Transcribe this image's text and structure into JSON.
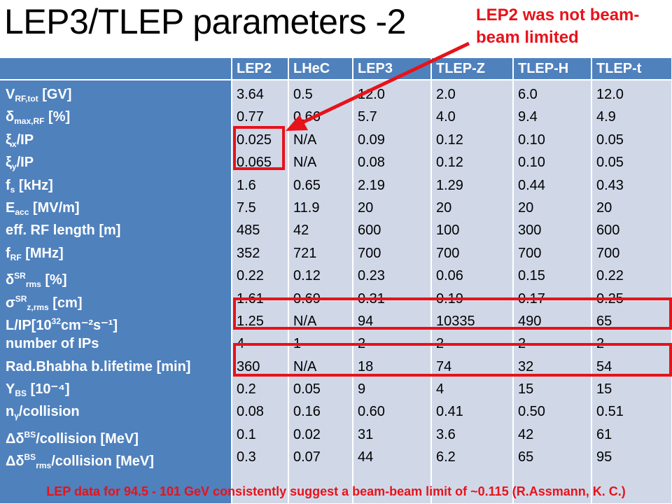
{
  "title": "LEP3/TLEP parameters -2",
  "callout": {
    "line1": "LEP2 was not beam-",
    "line2": "beam limited"
  },
  "columns": [
    "LEP2",
    "LHeC",
    "LEP3",
    "TLEP-Z",
    "TLEP-H",
    "TLEP-t"
  ],
  "row_labels": [
    {
      "base": "V",
      "sub": "RF,tot",
      "sup": "",
      "tail": " [GV]"
    },
    {
      "base": "δ",
      "sub": "max,RF",
      "sup": "",
      "tail": " [%]"
    },
    {
      "base": "ξ",
      "sub": "x",
      "sup": "",
      "tail": "/IP"
    },
    {
      "base": "ξ",
      "sub": "y",
      "sup": "",
      "tail": "/IP"
    },
    {
      "base": "f",
      "sub": "s",
      "sup": "",
      "tail": " [kHz]"
    },
    {
      "base": "E",
      "sub": "acc",
      "sup": "",
      "tail": " [MV/m]"
    },
    {
      "base": "eff. RF length [m]",
      "sub": "",
      "sup": "",
      "tail": ""
    },
    {
      "base": "f",
      "sub": "RF",
      "sup": "",
      "tail": " [MHz]"
    },
    {
      "base": "δ",
      "sub": "rms",
      "sup": "SR",
      "tail": " [%]"
    },
    {
      "base": "σ",
      "sub": "z,rms",
      "sup": "SR",
      "tail": " [cm]"
    },
    {
      "base": "L/IP[10",
      "sub": "",
      "sup": "32",
      "tail": "cm⁻²s⁻¹]"
    },
    {
      "base": "number of IPs",
      "sub": "",
      "sup": "",
      "tail": ""
    },
    {
      "base": "Rad.Bhabha b.lifetime [min]",
      "sub": "",
      "sup": "",
      "tail": ""
    },
    {
      "base": "Υ",
      "sub": "BS",
      "sup": "",
      "tail": " [10⁻⁴]"
    },
    {
      "base": "n",
      "sub": "γ",
      "sup": "",
      "tail": "/collision"
    },
    {
      "base": "Δδ",
      "sub": "",
      "sup": "BS",
      "tail": "/collision [MeV]"
    },
    {
      "base": "Δδ",
      "sub": "rms",
      "sup": "BS",
      "tail": "/collision [MeV]"
    }
  ],
  "values": [
    [
      "3.64",
      "0.77",
      "0.025",
      "0.065",
      "1.6",
      "7.5",
      "485",
      "352",
      "0.22",
      "1.61",
      "1.25",
      "4",
      "360",
      "0.2",
      "0.08",
      "0.1",
      "0.3"
    ],
    [
      "0.5",
      "0.66",
      "N/A",
      "N/A",
      "0.65",
      "11.9",
      "42",
      "721",
      "0.12",
      "0.69",
      "N/A",
      "1",
      "N/A",
      "0.05",
      "0.16",
      "0.02",
      "0.07"
    ],
    [
      "12.0",
      "5.7",
      "0.09",
      "0.08",
      "2.19",
      "20",
      "600",
      "700",
      "0.23",
      "0.31",
      "94",
      "2",
      "18",
      "9",
      "0.60",
      "31",
      "44"
    ],
    [
      "2.0",
      "4.0",
      "0.12",
      "0.12",
      "1.29",
      "20",
      "100",
      "700",
      "0.06",
      "0.19",
      "10335",
      "2",
      "74",
      "4",
      "0.41",
      "3.6",
      "6.2"
    ],
    [
      "6.0",
      "9.4",
      "0.10",
      "0.10",
      "0.44",
      "20",
      "300",
      "700",
      "0.15",
      "0.17",
      "490",
      "2",
      "32",
      "15",
      "0.50",
      "42",
      "65"
    ],
    [
      "12.0",
      "4.9",
      "0.05",
      "0.05",
      "0.43",
      "20",
      "600",
      "700",
      "0.22",
      "0.25",
      "65",
      "2",
      "54",
      "15",
      "0.51",
      "61",
      "95"
    ]
  ],
  "footnote": "LEP data for 94.5 - 101 GeV consistently suggest a beam-beam limit of ~0.115 (R.Assmann, K. C.)",
  "colors": {
    "header_blue": "#4f81bd",
    "cell_light": "#d0d8e8",
    "highlight_red": "#e8121a"
  }
}
